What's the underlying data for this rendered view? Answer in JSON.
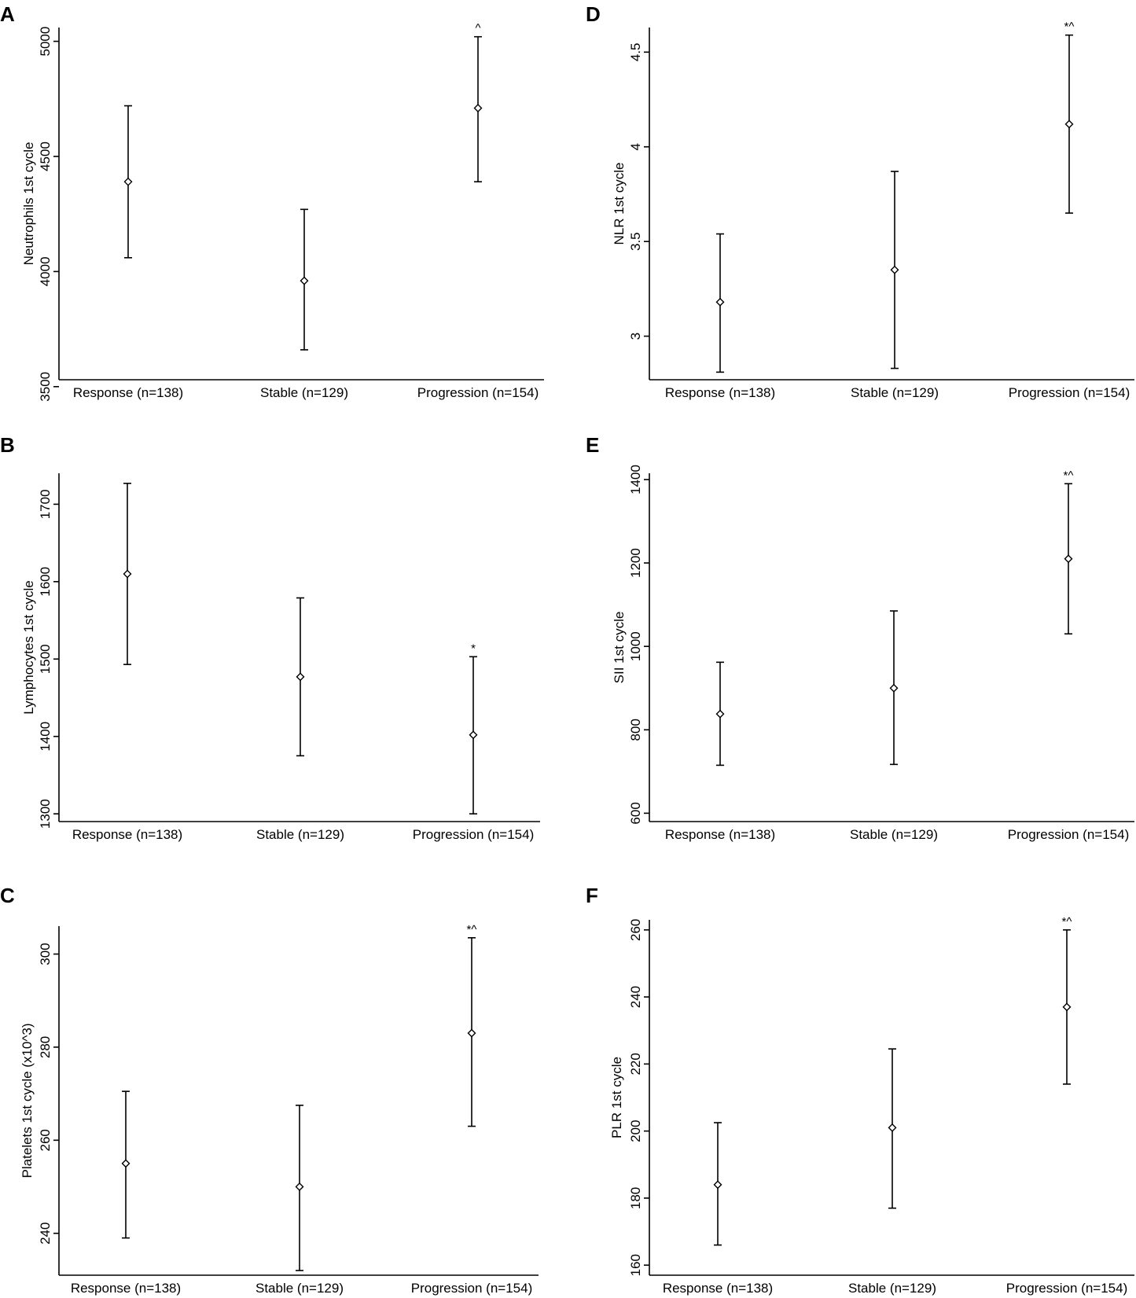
{
  "chart_data": [
    {
      "panel": "A",
      "type": "errorbar",
      "categories": [
        "Response (n=138)",
        "Stable (n=129)",
        "Progression (n=154)"
      ],
      "ylabel": "Neutrophils 1st cycle",
      "yticks": [
        "3500",
        "4000",
        "4500",
        "5000"
      ],
      "ylim": [
        3530,
        5060
      ],
      "means": [
        4390,
        3960,
        4710
      ],
      "lower": [
        4060,
        3660,
        4390
      ],
      "upper": [
        4720,
        4270,
        5020
      ],
      "annotations": [
        "",
        "",
        "^"
      ]
    },
    {
      "panel": "B",
      "type": "errorbar",
      "categories": [
        "Response (n=138)",
        "Stable (n=129)",
        "Progression (n=154)"
      ],
      "ylabel": "Lymphocytes 1st cycle",
      "yticks": [
        "1300",
        "1400",
        "1500",
        "1600",
        "1700"
      ],
      "ylim": [
        1290,
        1740
      ],
      "means": [
        1610,
        1477,
        1402
      ],
      "lower": [
        1493,
        1375,
        1300
      ],
      "upper": [
        1727,
        1579,
        1503
      ],
      "annotations": [
        "",
        "",
        "*"
      ]
    },
    {
      "panel": "C",
      "type": "errorbar",
      "categories": [
        "Response (n=138)",
        "Stable (n=129)",
        "Progression (n=154)"
      ],
      "ylabel": "Platelets 1st cycle (x10^3)",
      "yticks": [
        "240",
        "260",
        "280",
        "300"
      ],
      "ylim": [
        231,
        306
      ],
      "means": [
        255,
        250,
        283
      ],
      "lower": [
        239,
        232,
        263
      ],
      "upper": [
        270.5,
        267.5,
        303.5
      ],
      "annotations": [
        "",
        "",
        "*^"
      ]
    },
    {
      "panel": "D",
      "type": "errorbar",
      "categories": [
        "Response (n=138)",
        "Stable (n=129)",
        "Progression (n=154)"
      ],
      "ylabel": "NLR 1st cycle",
      "yticks": [
        "3",
        "3.5",
        "4",
        "4.5"
      ],
      "ylim": [
        2.77,
        4.63
      ],
      "means": [
        3.18,
        3.35,
        4.12
      ],
      "lower": [
        2.81,
        2.83,
        3.65
      ],
      "upper": [
        3.54,
        3.87,
        4.59
      ],
      "annotations": [
        "",
        "",
        "*^"
      ]
    },
    {
      "panel": "E",
      "type": "errorbar",
      "categories": [
        "Response (n=138)",
        "Stable (n=129)",
        "Progression (n=154)"
      ],
      "ylabel": "SII 1st cycle",
      "yticks": [
        "600",
        "800",
        "1000",
        "1200",
        "1400"
      ],
      "ylim": [
        580,
        1415
      ],
      "means": [
        838,
        900,
        1210
      ],
      "lower": [
        715,
        717,
        1030
      ],
      "upper": [
        962,
        1085,
        1390
      ],
      "annotations": [
        "",
        "",
        "*^"
      ]
    },
    {
      "panel": "F",
      "type": "errorbar",
      "categories": [
        "Response (n=138)",
        "Stable (n=129)",
        "Progression (n=154)"
      ],
      "ylabel": "PLR 1st cycle",
      "yticks": [
        "160",
        "180",
        "200",
        "220",
        "240",
        "260"
      ],
      "ylim": [
        157,
        263
      ],
      "means": [
        184,
        201,
        237
      ],
      "lower": [
        166,
        177,
        214
      ],
      "upper": [
        202.5,
        224.5,
        260
      ]
    }
  ],
  "annotations_f": [
    "",
    "",
    "*^"
  ]
}
